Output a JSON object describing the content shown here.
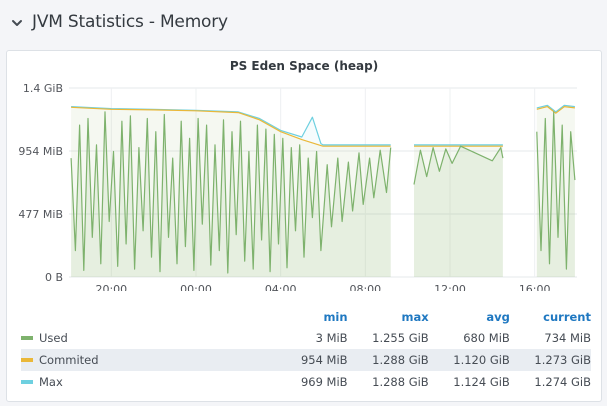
{
  "row": {
    "title": "JVM Statistics - Memory"
  },
  "panel": {
    "title": "PS Eden Space (heap)"
  },
  "colors": {
    "used": "#7eb26d",
    "commited": "#eab839",
    "max": "#6ed0e0"
  },
  "legend": {
    "headers": [
      "min",
      "max",
      "avg",
      "current"
    ],
    "rows": [
      {
        "name": "Used",
        "color": "#7eb26d",
        "min": "3 MiB",
        "max": "1.255 GiB",
        "avg": "680 MiB",
        "current": "734 MiB"
      },
      {
        "name": "Commited",
        "color": "#eab839",
        "min": "954 MiB",
        "max": "1.288 GiB",
        "avg": "1.120 GiB",
        "current": "1.273 GiB"
      },
      {
        "name": "Max",
        "color": "#6ed0e0",
        "min": "969 MiB",
        "max": "1.288 GiB",
        "avg": "1.124 GiB",
        "current": "1.274 GiB"
      }
    ]
  },
  "chart_data": {
    "type": "line",
    "title": "PS Eden Space (heap)",
    "y_ticks": [
      "0 B",
      "477 MiB",
      "954 MiB",
      "1.4 GiB"
    ],
    "y_tick_values_mib": [
      0,
      477,
      954,
      1431
    ],
    "ylim_mib": [
      0,
      1431
    ],
    "x_ticks": [
      "20:00",
      "00:00",
      "04:00",
      "08:00",
      "12:00",
      "16:00"
    ],
    "x_tick_hours": [
      20,
      24,
      28,
      32,
      36,
      40
    ],
    "xlim_hours": [
      18,
      42
    ],
    "grid": true,
    "legend_placement": "bottom",
    "gaps_hours": [
      [
        33.2,
        34.3
      ],
      [
        38.5,
        40.1
      ]
    ],
    "series": [
      {
        "name": "Max",
        "points": [
          [
            18.1,
            1290
          ],
          [
            20,
            1275
          ],
          [
            22,
            1270
          ],
          [
            24,
            1262
          ],
          [
            26,
            1250
          ],
          [
            27,
            1200
          ],
          [
            28,
            1110
          ],
          [
            29,
            1060
          ],
          [
            29.5,
            1210
          ],
          [
            29.9,
            1010
          ],
          [
            30,
            1000
          ],
          [
            33.2,
            1000
          ],
          [
            34.3,
            1000
          ],
          [
            38.5,
            1000
          ],
          [
            40.1,
            1280
          ],
          [
            40.6,
            1300
          ],
          [
            41,
            1250
          ],
          [
            41.4,
            1300
          ],
          [
            41.9,
            1290
          ]
        ]
      },
      {
        "name": "Commited",
        "points": [
          [
            18.1,
            1285
          ],
          [
            20,
            1270
          ],
          [
            22,
            1265
          ],
          [
            24,
            1258
          ],
          [
            26,
            1245
          ],
          [
            27,
            1190
          ],
          [
            28,
            1100
          ],
          [
            29,
            1040
          ],
          [
            29.9,
            995
          ],
          [
            30,
            990
          ],
          [
            33.2,
            990
          ],
          [
            34.3,
            990
          ],
          [
            38.5,
            990
          ],
          [
            40.1,
            1270
          ],
          [
            40.6,
            1290
          ],
          [
            41,
            1240
          ],
          [
            41.4,
            1290
          ],
          [
            41.9,
            1280
          ]
        ]
      },
      {
        "name": "Used",
        "points": [
          [
            18.1,
            900
          ],
          [
            18.3,
            200
          ],
          [
            18.5,
            1150
          ],
          [
            18.7,
            50
          ],
          [
            18.9,
            1200
          ],
          [
            19.1,
            300
          ],
          [
            19.3,
            1000
          ],
          [
            19.5,
            100
          ],
          [
            19.7,
            1250
          ],
          [
            19.9,
            420
          ],
          [
            20.1,
            950
          ],
          [
            20.3,
            80
          ],
          [
            20.5,
            1180
          ],
          [
            20.7,
            250
          ],
          [
            20.9,
            1220
          ],
          [
            21.1,
            60
          ],
          [
            21.3,
            980
          ],
          [
            21.5,
            350
          ],
          [
            21.7,
            1200
          ],
          [
            21.9,
            150
          ],
          [
            22.1,
            1100
          ],
          [
            22.3,
            40
          ],
          [
            22.5,
            1230
          ],
          [
            22.7,
            300
          ],
          [
            22.9,
            900
          ],
          [
            23.1,
            100
          ],
          [
            23.3,
            1180
          ],
          [
            23.5,
            230
          ],
          [
            23.7,
            1050
          ],
          [
            23.9,
            50
          ],
          [
            24.1,
            1200
          ],
          [
            24.3,
            400
          ],
          [
            24.5,
            1150
          ],
          [
            24.7,
            90
          ],
          [
            24.9,
            1000
          ],
          [
            25.1,
            200
          ],
          [
            25.3,
            1190
          ],
          [
            25.5,
            30
          ],
          [
            25.7,
            1100
          ],
          [
            25.9,
            320
          ],
          [
            26.1,
            1180
          ],
          [
            26.3,
            120
          ],
          [
            26.5,
            950
          ],
          [
            26.7,
            60
          ],
          [
            26.9,
            1150
          ],
          [
            27.1,
            280
          ],
          [
            27.3,
            1120
          ],
          [
            27.5,
            40
          ],
          [
            27.7,
            1080
          ],
          [
            27.9,
            250
          ],
          [
            28.1,
            1050
          ],
          [
            28.3,
            70
          ],
          [
            28.5,
            980
          ],
          [
            28.7,
            350
          ],
          [
            28.9,
            1000
          ],
          [
            29.1,
            150
          ],
          [
            29.3,
            900
          ],
          [
            29.5,
            450
          ],
          [
            29.7,
            950
          ],
          [
            29.9,
            200
          ],
          [
            30.2,
            850
          ],
          [
            30.4,
            380
          ],
          [
            30.7,
            900
          ],
          [
            30.9,
            420
          ],
          [
            31.2,
            870
          ],
          [
            31.4,
            500
          ],
          [
            31.7,
            940
          ],
          [
            31.9,
            550
          ],
          [
            32.2,
            900
          ],
          [
            32.4,
            600
          ],
          [
            32.7,
            960
          ],
          [
            33.0,
            640
          ],
          [
            33.2,
            980
          ],
          [
            34.3,
            700
          ],
          [
            34.6,
            960
          ],
          [
            34.9,
            760
          ],
          [
            35.2,
            980
          ],
          [
            35.5,
            800
          ],
          [
            35.8,
            970
          ],
          [
            36.1,
            860
          ],
          [
            36.5,
            990
          ],
          [
            38.0,
            880
          ],
          [
            38.4,
            980
          ],
          [
            38.5,
            900
          ],
          [
            40.1,
            1100
          ],
          [
            40.3,
            200
          ],
          [
            40.5,
            1200
          ],
          [
            40.7,
            100
          ],
          [
            40.9,
            1250
          ],
          [
            41.1,
            300
          ],
          [
            41.3,
            1150
          ],
          [
            41.5,
            60
          ],
          [
            41.7,
            1100
          ],
          [
            41.9,
            734
          ]
        ]
      }
    ]
  }
}
